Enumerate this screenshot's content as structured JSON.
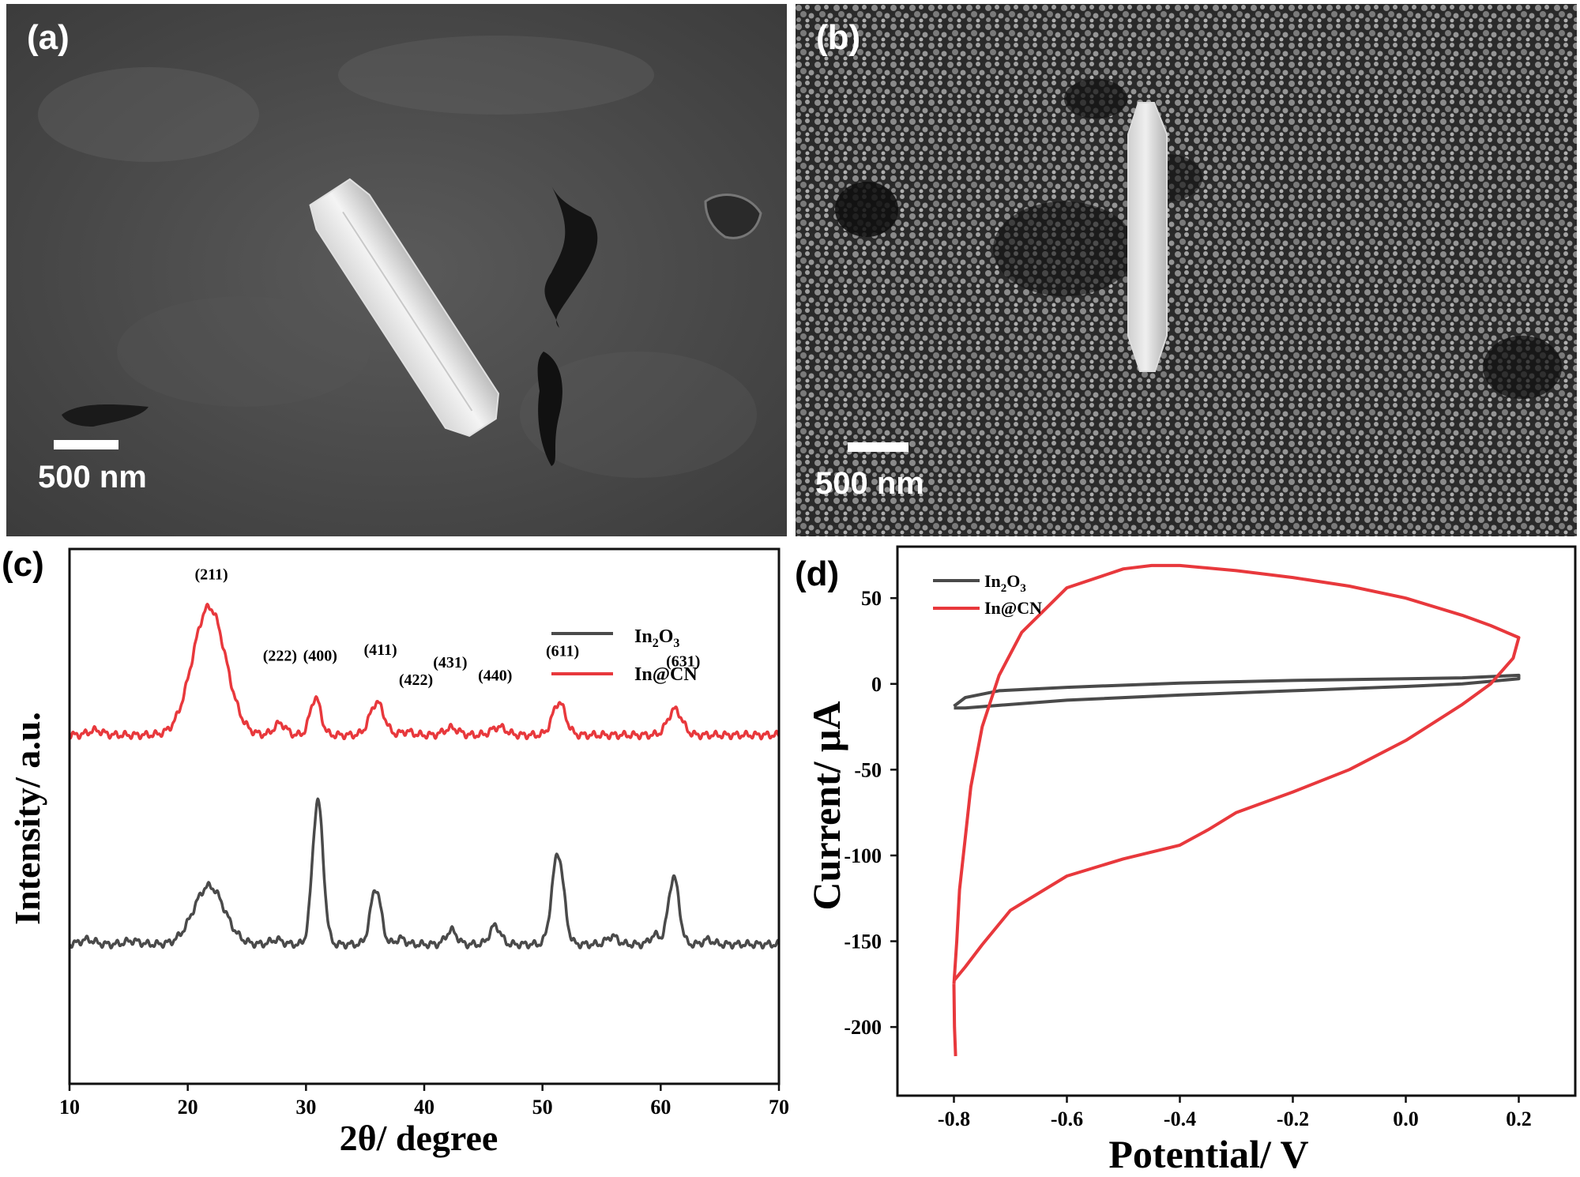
{
  "panels": {
    "a": {
      "label": "(a)",
      "scale_bar": "500 nm"
    },
    "b": {
      "label": "(b)",
      "scale_bar": "500 nm"
    },
    "c": {
      "label": "(c)"
    },
    "d": {
      "label": "(d)"
    }
  },
  "colors": {
    "in2o3": "#4a4a4a",
    "incn": "#e8383c",
    "axis": "#111111"
  },
  "chart_data": [
    {
      "type": "line",
      "panel": "c",
      "xlabel": "2θ/ degree",
      "ylabel": "Intensity/ a.u.",
      "xlim": [
        10,
        70
      ],
      "xticks": [
        10,
        20,
        30,
        40,
        50,
        60,
        70
      ],
      "x_tick_labels": [
        "10",
        "20",
        "30",
        "40",
        "50",
        "60",
        "70"
      ],
      "y_tick_labels": false,
      "legend": "top-right",
      "series": [
        {
          "name": "In2O3",
          "display": {
            "pre": "In",
            "sub1": "2",
            "mid": "O",
            "sub2": "3"
          },
          "baseline": 0,
          "peaks": [
            {
              "x": 11.5,
              "h": 4,
              "w": 0.6
            },
            {
              "x": 15.3,
              "h": 3,
              "w": 0.6
            },
            {
              "x": 21.8,
              "h": 50,
              "w": 1.3
            },
            {
              "x": 27.5,
              "h": 4,
              "w": 0.5
            },
            {
              "x": 31.0,
              "h": 124,
              "w": 0.45
            },
            {
              "x": 35.9,
              "h": 48,
              "w": 0.45
            },
            {
              "x": 38.0,
              "h": 5,
              "w": 0.4
            },
            {
              "x": 42.3,
              "h": 12,
              "w": 0.45
            },
            {
              "x": 46.0,
              "h": 16,
              "w": 0.45
            },
            {
              "x": 51.3,
              "h": 78,
              "w": 0.5
            },
            {
              "x": 55.9,
              "h": 7,
              "w": 0.45
            },
            {
              "x": 59.5,
              "h": 8,
              "w": 0.4
            },
            {
              "x": 61.1,
              "h": 58,
              "w": 0.45
            },
            {
              "x": 64.0,
              "h": 4,
              "w": 0.4
            }
          ]
        },
        {
          "name": "In@CN",
          "baseline": 180,
          "peaks": [
            {
              "x": 12.2,
              "h": 4,
              "w": 0.6
            },
            {
              "x": 21.8,
              "h": 110,
              "w": 1.4
            },
            {
              "x": 27.8,
              "h": 10,
              "w": 0.5
            },
            {
              "x": 30.8,
              "h": 32,
              "w": 0.45
            },
            {
              "x": 36.0,
              "h": 28,
              "w": 0.6
            },
            {
              "x": 38.5,
              "h": 3,
              "w": 0.5
            },
            {
              "x": 42.3,
              "h": 6,
              "w": 0.6
            },
            {
              "x": 46.3,
              "h": 7,
              "w": 0.6
            },
            {
              "x": 51.4,
              "h": 28,
              "w": 0.55
            },
            {
              "x": 61.2,
              "h": 22,
              "w": 0.6
            }
          ]
        }
      ],
      "annotations": [
        {
          "text": "(211)",
          "x": 22.0,
          "y": 314
        },
        {
          "text": "(222)",
          "x": 27.8,
          "y": 244
        },
        {
          "text": "(400)",
          "x": 31.2,
          "y": 244
        },
        {
          "text": "(411)",
          "x": 36.3,
          "y": 249
        },
        {
          "text": "(422)",
          "x": 39.3,
          "y": 223
        },
        {
          "text": "(431)",
          "x": 42.2,
          "y": 238
        },
        {
          "text": "(440)",
          "x": 46.0,
          "y": 227
        },
        {
          "text": "(611)",
          "x": 51.7,
          "y": 248
        },
        {
          "text": "(631)",
          "x": 61.9,
          "y": 239
        }
      ]
    },
    {
      "type": "line",
      "panel": "d",
      "xlabel": "Potential/ V",
      "ylabel": "Current/ μA",
      "xlim": [
        -0.9,
        0.3
      ],
      "ylim": [
        -240,
        80
      ],
      "xticks": [
        -0.8,
        -0.6,
        -0.4,
        -0.2,
        0.0,
        0.2
      ],
      "x_tick_labels": [
        "-0.8",
        "-0.6",
        "-0.4",
        "-0.2",
        "0.0",
        "0.2"
      ],
      "yticks": [
        50,
        0,
        -50,
        -100,
        -150,
        -200
      ],
      "y_tick_labels": [
        "50",
        "0",
        "-50",
        "-100",
        "-150",
        "-200"
      ],
      "legend": "top-left",
      "series": [
        {
          "name": "In2O3",
          "display": {
            "pre": "In",
            "sub1": "2",
            "mid": "O",
            "sub2": "3"
          },
          "x": [
            -0.8,
            -0.78,
            -0.72,
            -0.6,
            -0.4,
            -0.2,
            0.0,
            0.1,
            0.2,
            0.2,
            0.1,
            0.0,
            -0.2,
            -0.4,
            -0.6,
            -0.72,
            -0.78,
            -0.8
          ],
          "y": [
            -14,
            -14,
            -12.5,
            -9.5,
            -6.5,
            -4,
            -1.5,
            0,
            3,
            5,
            3.5,
            3,
            2,
            0.5,
            -2,
            -4,
            -8,
            -13
          ]
        },
        {
          "name": "In@CN",
          "x": [
            -0.8,
            -0.795,
            -0.79,
            -0.78,
            -0.77,
            -0.75,
            -0.72,
            -0.68,
            -0.6,
            -0.5,
            -0.45,
            -0.4,
            -0.3,
            -0.2,
            -0.1,
            0.0,
            0.1,
            0.15,
            0.2,
            0.19,
            0.15,
            0.1,
            0.0,
            -0.1,
            -0.2,
            -0.3,
            -0.35,
            -0.4,
            -0.5,
            -0.6,
            -0.7,
            -0.75,
            -0.78,
            -0.8
          ],
          "y": [
            -175,
            -150,
            -120,
            -90,
            -60,
            -25,
            5,
            30,
            56,
            67,
            69,
            69,
            66,
            62,
            57,
            50,
            40,
            34,
            27,
            15,
            0,
            -12,
            -33,
            -50,
            -63,
            -75,
            -85,
            -94,
            -102,
            -112,
            -132,
            -152,
            -165,
            -173
          ]
        }
      ],
      "extra_segments": [
        {
          "series": "In@CN",
          "x": [
            -0.8,
            -0.799,
            -0.797
          ],
          "y": [
            -175,
            -200,
            -217
          ]
        }
      ]
    }
  ]
}
